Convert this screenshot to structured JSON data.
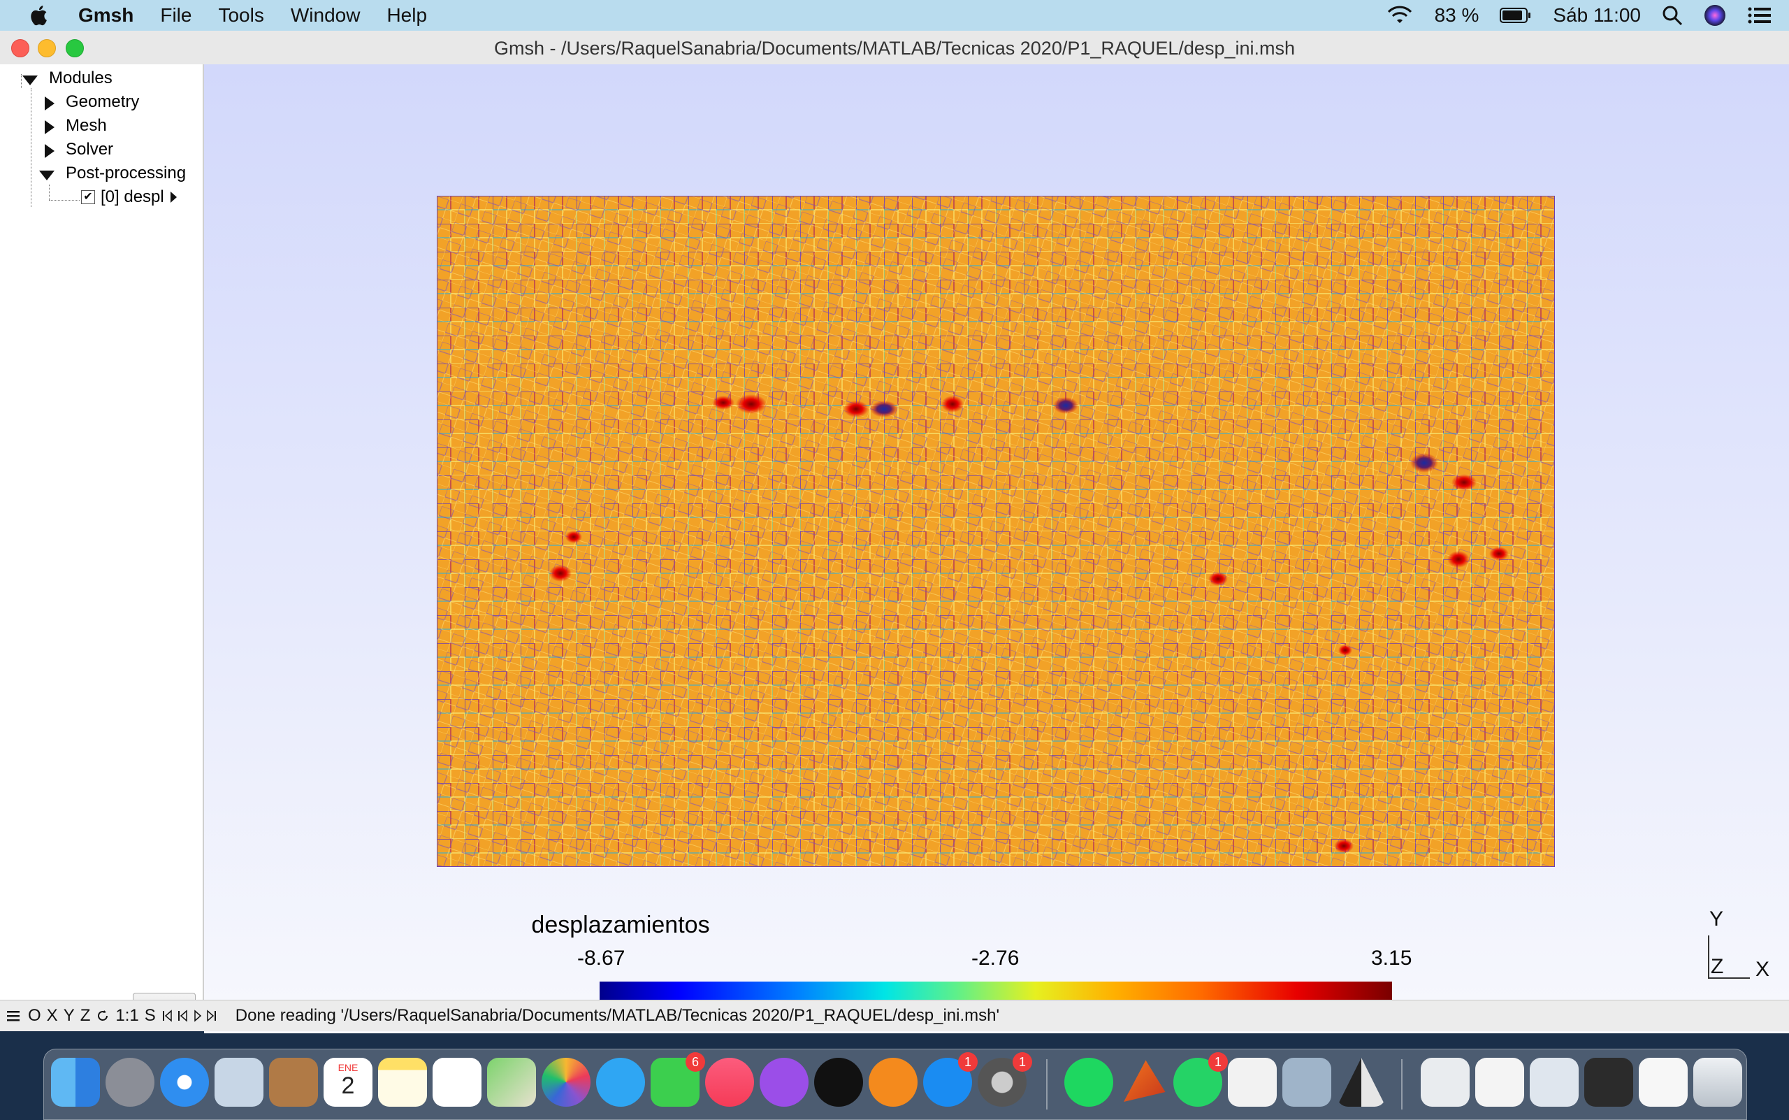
{
  "menubar": {
    "app_name": "Gmsh",
    "items": [
      "File",
      "Tools",
      "Window",
      "Help"
    ],
    "battery": "83 %",
    "clock": "Sáb 11:00"
  },
  "window": {
    "title": "Gmsh - /Users/RaquelSanabria/Documents/MATLAB/Tecnicas 2020/P1_RAQUEL/desp_ini.msh"
  },
  "tree": {
    "root": "Modules",
    "items": [
      "Geometry",
      "Mesh",
      "Solver",
      "Post-processing"
    ],
    "view": "[0] despl"
  },
  "legend": {
    "title": "desplazamientos",
    "min": "-8.67",
    "mid": "-2.76",
    "max": "3.15"
  },
  "axes": {
    "y": "Y",
    "z": "Z",
    "x": "X"
  },
  "statusbar": {
    "controls": [
      "O",
      "X",
      "Y",
      "Z",
      "1:1",
      "S"
    ],
    "message": "Done reading '/Users/RaquelSanabria/Documents/MATLAB/Tecnicas 2020/P1_RAQUEL/desp_ini.msh'"
  },
  "dock": {
    "badges": {
      "facetime": "6",
      "appstore": "1",
      "preferences": "1",
      "whatsapp": "1"
    },
    "calendar": {
      "month": "ENE",
      "day": "2"
    }
  },
  "colors": {
    "mesh_fill": "#f2a227",
    "menubar": "#b9dcee"
  }
}
